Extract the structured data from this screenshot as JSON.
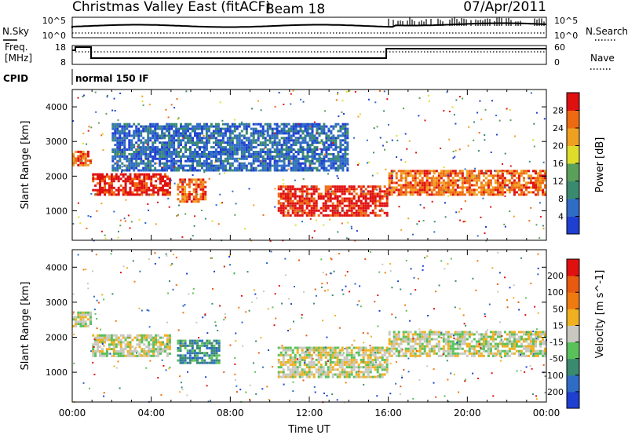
{
  "header": {
    "title": "Christmas Valley East (fitACF)",
    "beam": "Beam 18",
    "date": "07/Apr/2011"
  },
  "top_panels": {
    "nsky_label": "N.Sky",
    "nsky_tick_high": "10^5",
    "nsky_tick_low": "10^0",
    "nsearch_label": "N.Search",
    "nsearch_tick_high": "10^5",
    "nsearch_tick_low": "10^0",
    "freq_label_1": "Freq.",
    "freq_label_2": "[MHz]",
    "freq_tick_high": "18",
    "freq_tick_low": "8",
    "nave_label": "Nave",
    "nave_tick_high": "60",
    "nave_tick_low": "0",
    "cpid_label": "CPID",
    "cpid_text": "normal 150 IF"
  },
  "chart_data": [
    {
      "type": "heatmap",
      "panel": "power",
      "ylabel": "Slant Range [km]",
      "yticks": [
        1000,
        2000,
        3000,
        4000
      ],
      "ylim": [
        150,
        4500
      ],
      "xlim": [
        0,
        24
      ],
      "colorbar_label": "Power [dB]",
      "colorbar_ticks": [
        "28",
        "24",
        "20",
        "16",
        "12",
        "8",
        "4"
      ],
      "colors": [
        "#1f3fd1",
        "#2f6cc6",
        "#3a8a70",
        "#5aa05a",
        "#dede2a",
        "#f0a020",
        "#ee6a10",
        "#e01010"
      ],
      "regions": [
        {
          "t0": 0.0,
          "t1": 1.0,
          "r0": 2350,
          "r1": 2800,
          "level": 6
        },
        {
          "t0": 1.0,
          "t1": 5.0,
          "r0": 1500,
          "r1": 2150,
          "level": 7
        },
        {
          "t0": 5.3,
          "t1": 6.8,
          "r0": 1300,
          "r1": 2000,
          "level": 6
        },
        {
          "t0": 10.4,
          "t1": 16.0,
          "r0": 900,
          "r1": 1800,
          "level": 7
        },
        {
          "t0": 16.0,
          "t1": 24.0,
          "r0": 1500,
          "r1": 2250,
          "level": 6
        },
        {
          "t0": 2.0,
          "t1": 14.0,
          "r0": 2200,
          "r1": 3600,
          "level": 1
        }
      ]
    },
    {
      "type": "heatmap",
      "panel": "velocity",
      "ylabel": "Slant Range [km]",
      "xlabel": "Time UT",
      "yticks": [
        1000,
        2000,
        3000,
        4000
      ],
      "ylim": [
        150,
        4500
      ],
      "xlim": [
        0,
        24
      ],
      "xticks": [
        "00:00",
        "04:00",
        "08:00",
        "12:00",
        "16:00",
        "20:00",
        "00:00"
      ],
      "colorbar_label": "Velocity [m s^-1]",
      "colorbar_ticks": [
        "200",
        "100",
        "50",
        "15",
        "-15",
        "-50",
        "-100",
        "-200"
      ],
      "colors": [
        "#1f3fd1",
        "#2f6cc6",
        "#3a8a70",
        "#5ac05a",
        "#c8c8c0",
        "#f0b020",
        "#ee7a10",
        "#e85a10",
        "#e01010"
      ],
      "regions": [
        {
          "t0": 0.0,
          "t1": 1.0,
          "r0": 2350,
          "r1": 2800,
          "level": 4
        },
        {
          "t0": 1.0,
          "t1": 5.0,
          "r0": 1500,
          "r1": 2150,
          "level": 4
        },
        {
          "t0": 5.3,
          "t1": 7.5,
          "r0": 1300,
          "r1": 2000,
          "level": 2
        },
        {
          "t0": 10.4,
          "t1": 16.0,
          "r0": 900,
          "r1": 1800,
          "level": 4
        },
        {
          "t0": 16.0,
          "t1": 24.0,
          "r0": 1500,
          "r1": 2250,
          "level": 4
        }
      ]
    }
  ]
}
